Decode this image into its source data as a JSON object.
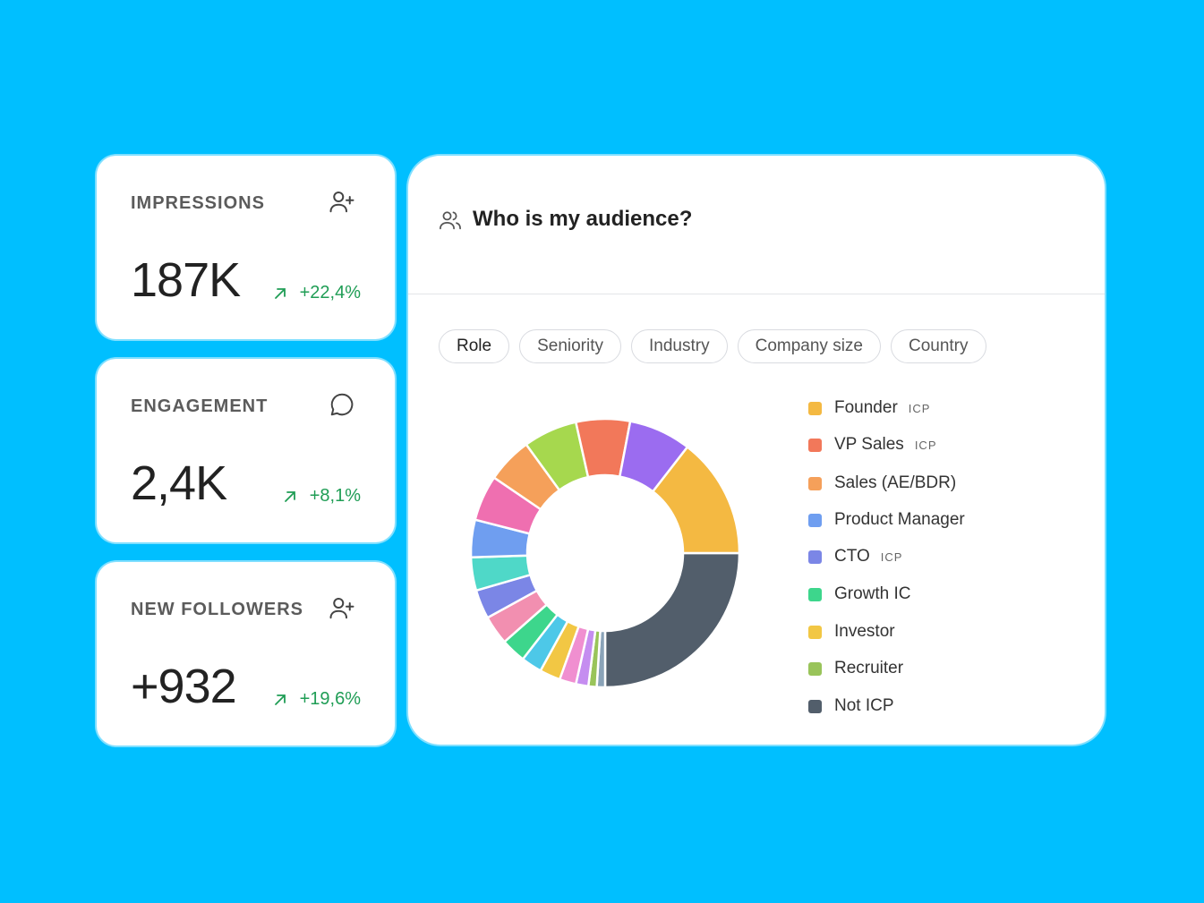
{
  "stats": [
    {
      "label": "IMPRESSIONS",
      "value": "187K",
      "delta": "+22,4%",
      "icon": "user-plus-icon"
    },
    {
      "label": "ENGAGEMENT",
      "value": "2,4K",
      "delta": "+8,1%",
      "icon": "chat-bubble-icon"
    },
    {
      "label": "NEW FOLLOWERS",
      "value": "+932",
      "delta": "+19,6%",
      "icon": "user-plus-icon"
    }
  ],
  "audience": {
    "title": "Who is my audience?",
    "icon": "users-icon",
    "tabs": [
      "Role",
      "Seniority",
      "Industry",
      "Company size",
      "Country"
    ],
    "active_tab": "Role"
  },
  "legend": [
    {
      "name": "Founder",
      "icp": "ICP",
      "color": "#f4b942"
    },
    {
      "name": "VP Sales",
      "icp": "ICP",
      "color": "#f2785a"
    },
    {
      "name": "Sales (AE/BDR)",
      "icp": "",
      "color": "#f5a05a"
    },
    {
      "name": "Product Manager",
      "icp": "",
      "color": "#6f9ef0"
    },
    {
      "name": "CTO",
      "icp": "ICP",
      "color": "#7b86e6"
    },
    {
      "name": "Growth IC",
      "icp": "",
      "color": "#3dd68c"
    },
    {
      "name": "Investor",
      "icp": "",
      "color": "#f2c744"
    },
    {
      "name": "Recruiter",
      "icp": "",
      "color": "#99c45a"
    },
    {
      "name": "Not ICP",
      "icp": "",
      "color": "#525e6b"
    }
  ],
  "chart_data": {
    "type": "pie",
    "donut": true,
    "segments": [
      {
        "share": 25,
        "color": "#525e6b"
      },
      {
        "share": 1,
        "color": "#8aa3b8"
      },
      {
        "share": 1,
        "color": "#99c45a"
      },
      {
        "share": 1.5,
        "color": "#c58df0"
      },
      {
        "share": 2,
        "color": "#f08fd0"
      },
      {
        "share": 2.5,
        "color": "#f2c744"
      },
      {
        "share": 2.5,
        "color": "#4dc8e8"
      },
      {
        "share": 3,
        "color": "#3dd68c"
      },
      {
        "share": 3.5,
        "color": "#f28fb0"
      },
      {
        "share": 3.5,
        "color": "#7b86e6"
      },
      {
        "share": 4,
        "color": "#4fd8c8"
      },
      {
        "share": 4.5,
        "color": "#6f9ef0"
      },
      {
        "share": 5.5,
        "color": "#ef6fb0"
      },
      {
        "share": 5.5,
        "color": "#f5a05a"
      },
      {
        "share": 6.5,
        "color": "#a6d84e"
      },
      {
        "share": 6.5,
        "color": "#f2785a"
      },
      {
        "share": 7.5,
        "color": "#9b6cf0"
      },
      {
        "share": 14.5,
        "color": "#f4b942"
      }
    ]
  }
}
